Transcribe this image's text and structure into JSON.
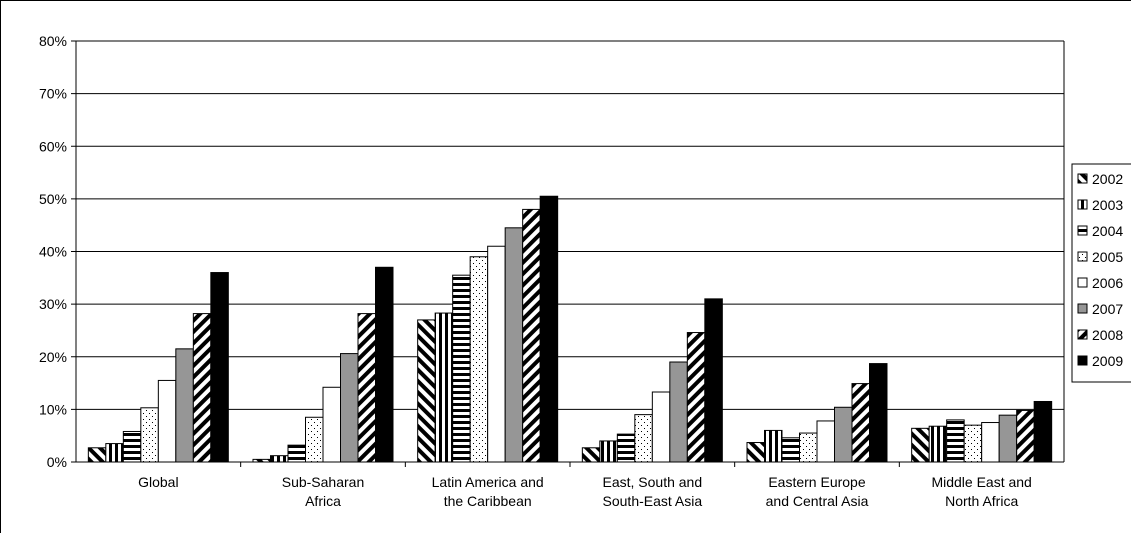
{
  "chart_data": {
    "type": "bar",
    "categories": [
      [
        "Global"
      ],
      [
        "Sub-Saharan",
        "Africa"
      ],
      [
        "Latin America and",
        "the Caribbean"
      ],
      [
        "East, South and",
        "South-East Asia"
      ],
      [
        "Eastern Europe",
        "and Central Asia"
      ],
      [
        "Middle East and",
        "North Africa"
      ]
    ],
    "series": [
      {
        "name": "2002",
        "pattern": "diag-back",
        "values": [
          2.7,
          0.5,
          27.0,
          2.7,
          3.7,
          6.4
        ]
      },
      {
        "name": "2003",
        "pattern": "vertical",
        "values": [
          3.5,
          1.2,
          28.3,
          4.0,
          6.0,
          6.8
        ]
      },
      {
        "name": "2004",
        "pattern": "horizontal",
        "values": [
          5.8,
          3.2,
          35.5,
          5.3,
          4.6,
          8.0
        ]
      },
      {
        "name": "2005",
        "pattern": "dots",
        "values": [
          10.3,
          8.5,
          39.0,
          9.0,
          5.5,
          7.0
        ]
      },
      {
        "name": "2006",
        "pattern": "white",
        "values": [
          15.5,
          14.2,
          41.0,
          13.3,
          7.8,
          7.5
        ]
      },
      {
        "name": "2007",
        "pattern": "gray",
        "values": [
          21.5,
          20.6,
          44.5,
          19.0,
          10.4,
          8.9
        ]
      },
      {
        "name": "2008",
        "pattern": "diag-fwd",
        "values": [
          28.2,
          28.2,
          48.0,
          24.6,
          14.9,
          9.8
        ]
      },
      {
        "name": "2009",
        "pattern": "black",
        "values": [
          36.0,
          37.0,
          50.5,
          31.0,
          18.7,
          11.5
        ]
      }
    ],
    "yticks": [
      "0%",
      "10%",
      "20%",
      "30%",
      "40%",
      "50%",
      "60%",
      "70%",
      "80%"
    ],
    "ylim": [
      0,
      80
    ],
    "grid": true,
    "legend_position": "right"
  }
}
